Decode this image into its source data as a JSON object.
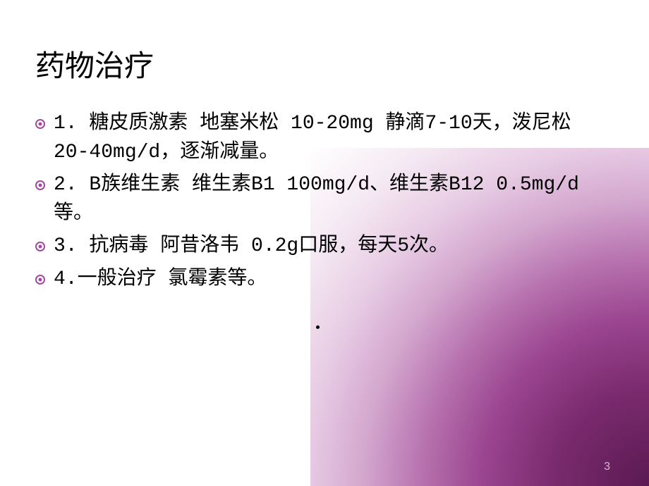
{
  "title": "药物治疗",
  "bullets": [
    "1. 糖皮质激素 地塞米松 10-20mg 静滴7-10天，泼尼松 20-40mg/d，逐渐减量。",
    "2. B族维生素 维生素B1 100mg/d、维生素B12 0.5mg/d等。",
    "3. 抗病毒 阿昔洛韦 0.2g口服，每天5次。",
    "4.一般治疗 氯霉素等。"
  ],
  "page_number": "3",
  "colors": {
    "bullet_ring": "#a349a4",
    "text": "#000000",
    "gradient_start": "#5a1a52",
    "gradient_end": "#ffffff",
    "page_number": "#d8b3d4"
  }
}
